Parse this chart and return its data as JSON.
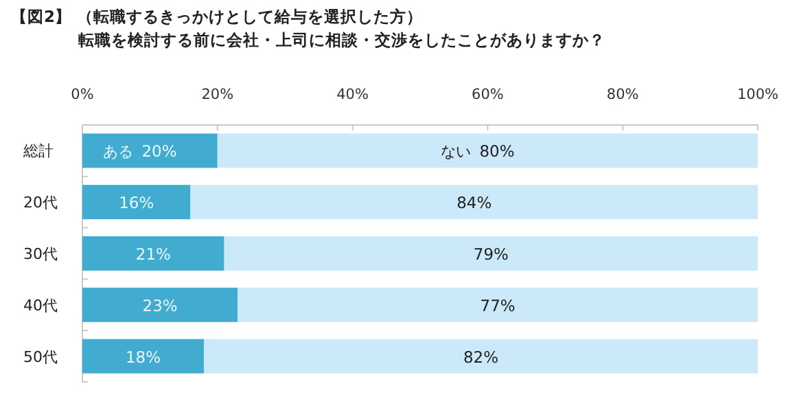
{
  "chart_data": {
    "type": "bar",
    "orientation": "horizontal",
    "stacked": true,
    "title": "【図2】 （転職するきっかけとして給与を選択した方）",
    "subtitle": "転職を検討する前に会社・上司に相談・交渉をしたことがありますか？",
    "categories": [
      "総計",
      "20代",
      "30代",
      "40代",
      "50代"
    ],
    "series": [
      {
        "name": "ある",
        "color": "#41abd0",
        "values": [
          20,
          16,
          21,
          23,
          18
        ],
        "value_labels": [
          "20%",
          "16%",
          "21%",
          "23%",
          "18%"
        ]
      },
      {
        "name": "ない",
        "color": "#cce9f9",
        "values": [
          80,
          84,
          79,
          77,
          82
        ],
        "value_labels": [
          "80%",
          "84%",
          "79%",
          "77%",
          "82%"
        ]
      }
    ],
    "xlim": [
      0,
      100
    ],
    "xticks": [
      {
        "value": 0,
        "label": "0%"
      },
      {
        "value": 20,
        "label": "20%"
      },
      {
        "value": 40,
        "label": "40%"
      },
      {
        "value": 60,
        "label": "60%"
      },
      {
        "value": 80,
        "label": "80%"
      },
      {
        "value": 100,
        "label": "100%"
      }
    ],
    "grid": false
  }
}
